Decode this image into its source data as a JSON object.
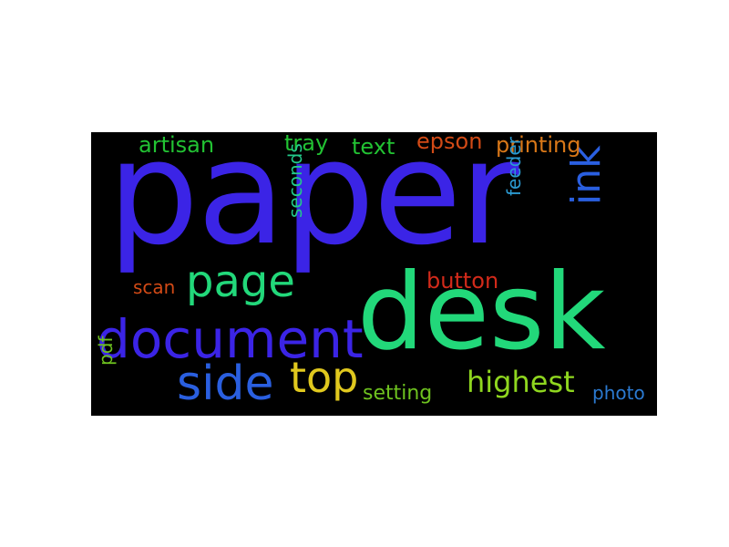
{
  "words": [
    {
      "id": "paper",
      "text": "paper",
      "color": "#3b24e6"
    },
    {
      "id": "desk",
      "text": "desk",
      "color": "#22d87a"
    },
    {
      "id": "document",
      "text": "document",
      "color": "#3b24e6"
    },
    {
      "id": "page",
      "text": "page",
      "color": "#22d87a"
    },
    {
      "id": "side",
      "text": "side",
      "color": "#2a5fe0"
    },
    {
      "id": "top",
      "text": "top",
      "color": "#e0c81e"
    },
    {
      "id": "ink",
      "text": "ink",
      "color": "#2a5fe0"
    },
    {
      "id": "highest",
      "text": "highest",
      "color": "#8fd61f"
    },
    {
      "id": "artisan",
      "text": "artisan",
      "color": "#22c233"
    },
    {
      "id": "tray",
      "text": "tray",
      "color": "#22c233"
    },
    {
      "id": "text",
      "text": "text",
      "color": "#22c233"
    },
    {
      "id": "epson",
      "text": "epson",
      "color": "#d24a16"
    },
    {
      "id": "printing",
      "text": "printing",
      "color": "#d87718"
    },
    {
      "id": "seconds",
      "text": "seconds",
      "color": "#22c98a"
    },
    {
      "id": "feeder",
      "text": "feeder",
      "color": "#2b9ad1"
    },
    {
      "id": "button",
      "text": "button",
      "color": "#d22a1a"
    },
    {
      "id": "scan",
      "text": "scan",
      "color": "#d24a16"
    },
    {
      "id": "pdf",
      "text": "pdf",
      "color": "#6ec21f"
    },
    {
      "id": "setting",
      "text": "setting",
      "color": "#6ec21f"
    },
    {
      "id": "photo",
      "text": "photo",
      "color": "#2b7ad1"
    }
  ]
}
